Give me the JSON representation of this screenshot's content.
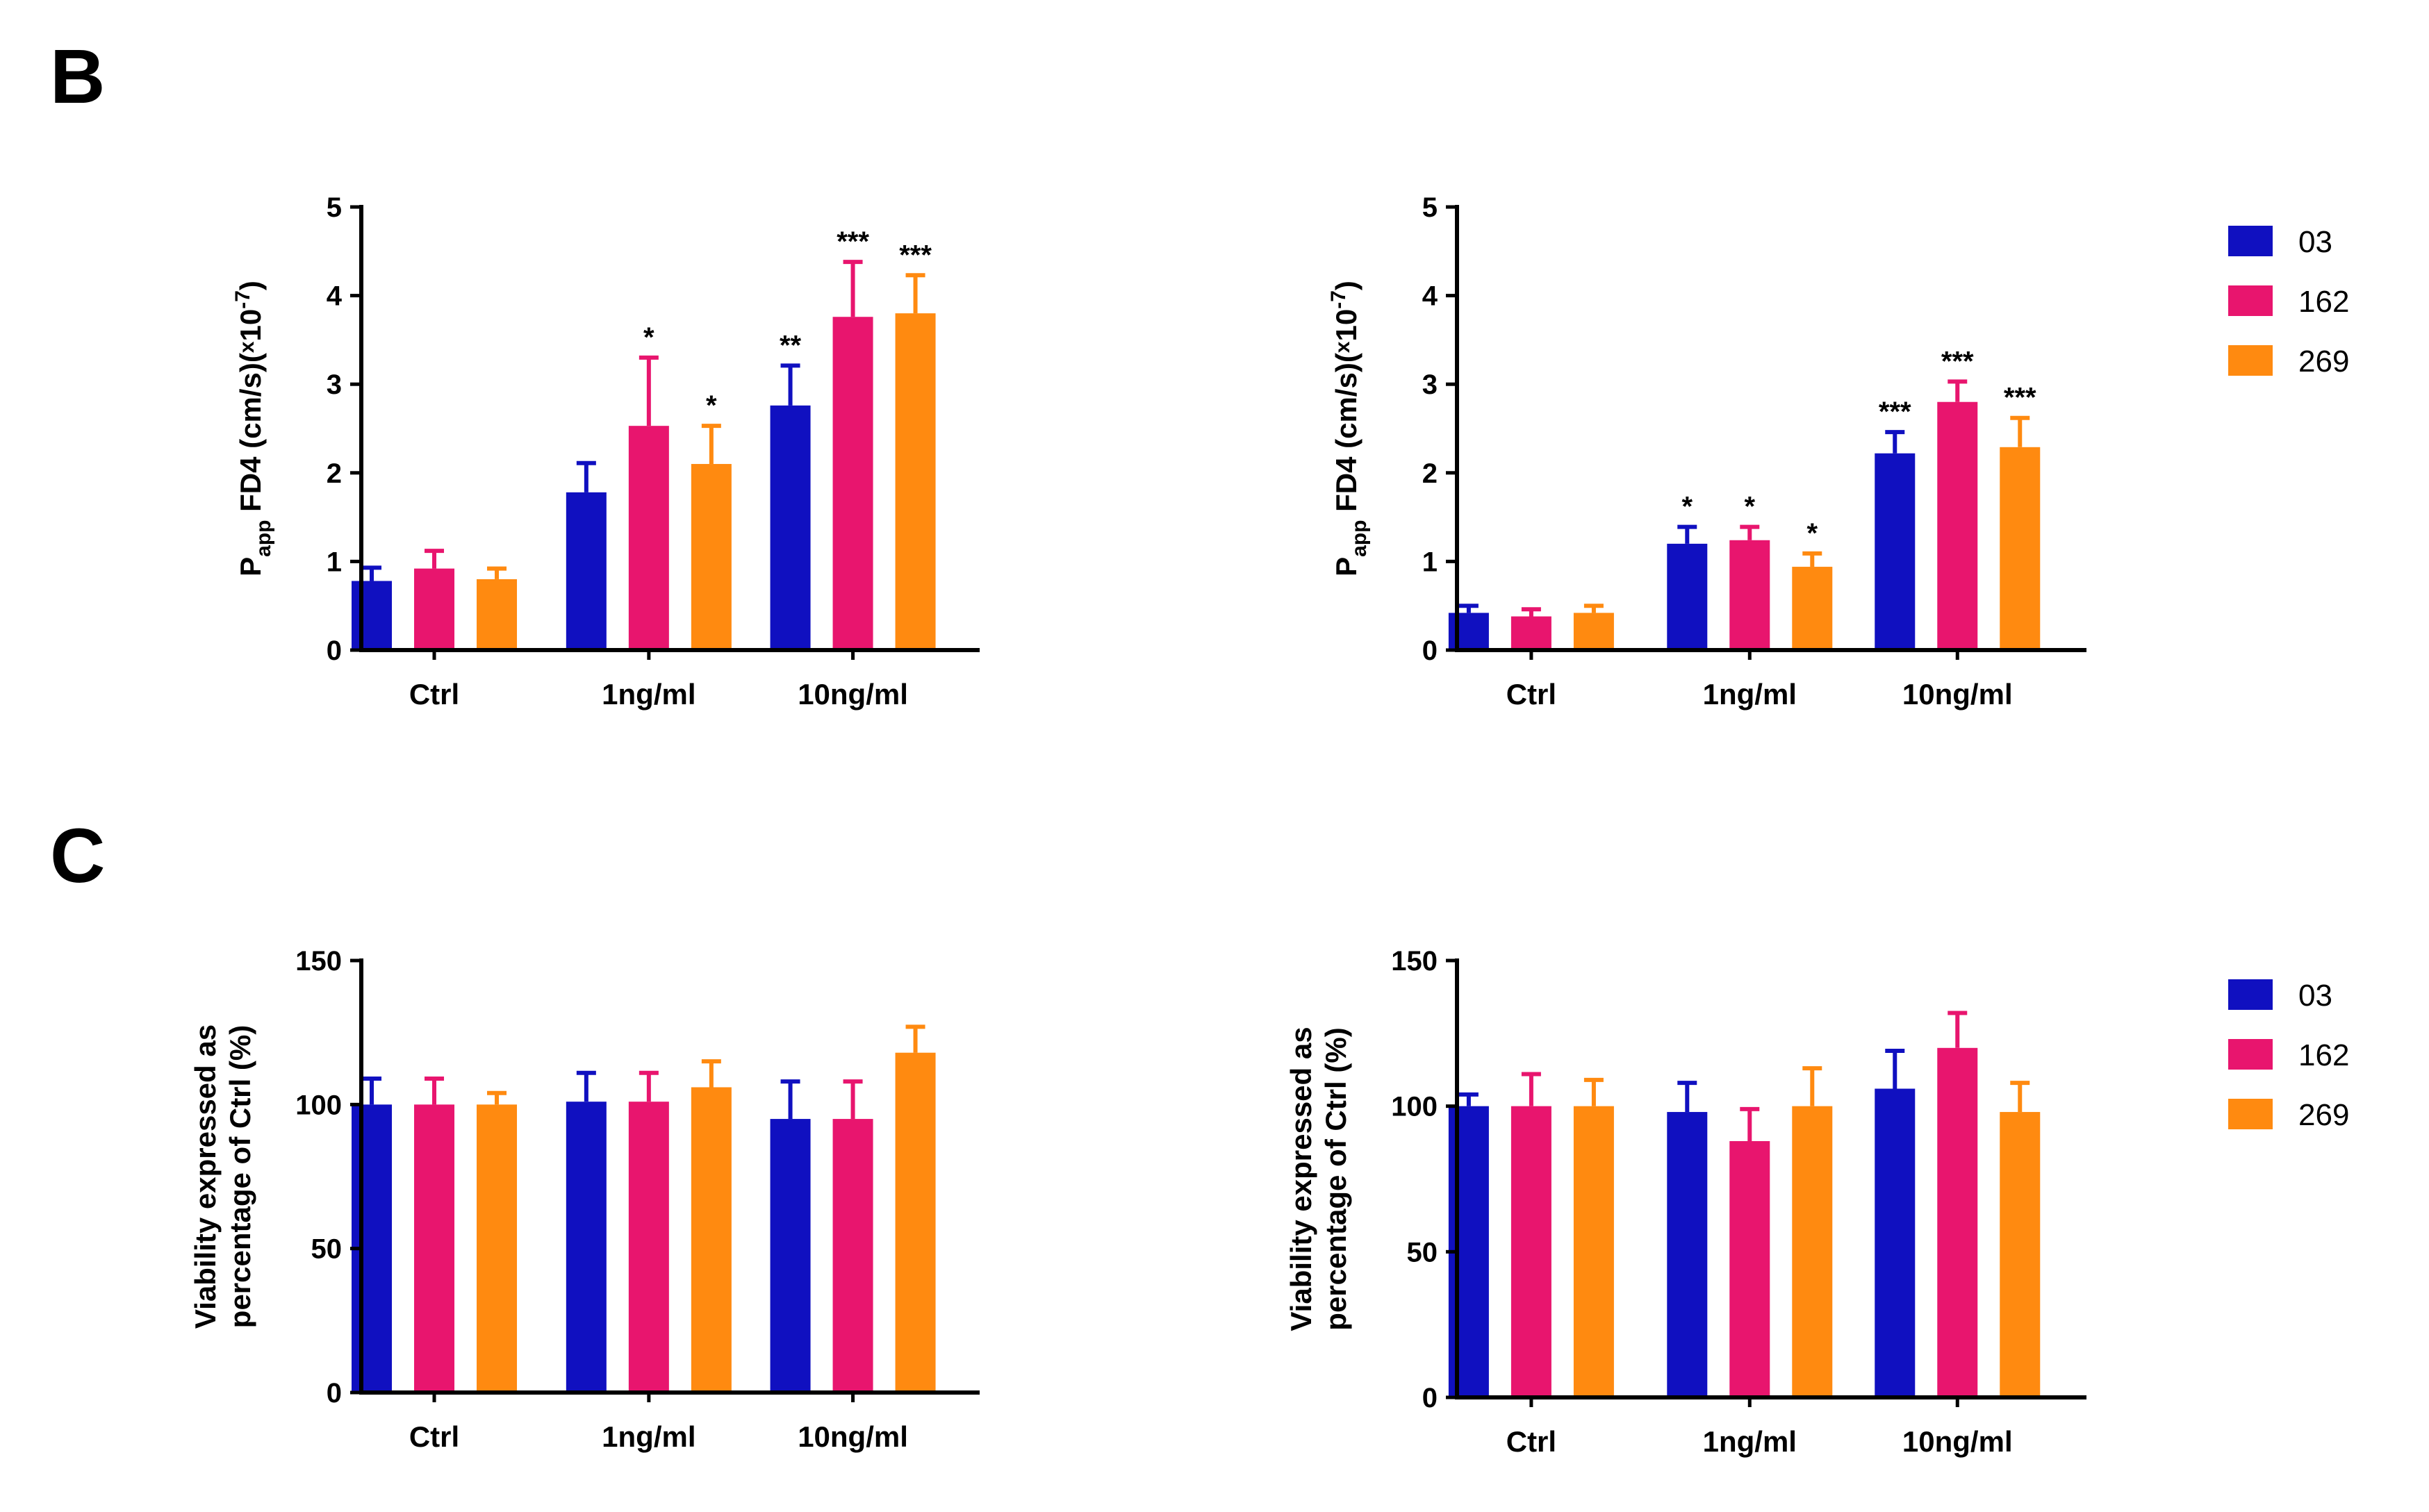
{
  "panels": {
    "B": {
      "label": "B"
    },
    "C": {
      "label": "C"
    }
  },
  "colors": {
    "s03": "#1010c0",
    "s162": "#e8156e",
    "s269": "#ff8a10",
    "axis": "#000000"
  },
  "legend": {
    "entries": [
      "03",
      "162",
      "269"
    ]
  },
  "chart_data": [
    {
      "type": "bar",
      "panel": "B",
      "categories": [
        "Ctrl",
        "1ng/ml",
        "10ng/ml"
      ],
      "ylabel": {
        "main": "P",
        "sub": "app",
        "rest": " FD4 (cm/s)(",
        "x": "x",
        "ten": "10",
        "exp": "-7",
        "close": ")"
      },
      "ylim": [
        0,
        5
      ],
      "yticks": [
        0,
        1,
        2,
        3,
        4,
        5
      ],
      "series": [
        {
          "name": "03",
          "values": [
            0.78,
            1.78,
            2.76
          ],
          "errors": [
            0.15,
            0.33,
            0.45
          ],
          "annotations": [
            "",
            "",
            "**"
          ]
        },
        {
          "name": "162",
          "values": [
            0.92,
            2.53,
            3.76
          ],
          "errors": [
            0.2,
            0.77,
            0.62
          ],
          "annotations": [
            "",
            "*",
            "***"
          ]
        },
        {
          "name": "269",
          "values": [
            0.8,
            2.1,
            3.8
          ],
          "errors": [
            0.12,
            0.43,
            0.43
          ],
          "annotations": [
            "",
            "*",
            "***"
          ]
        }
      ]
    },
    {
      "type": "bar",
      "panel": "B",
      "categories": [
        "Ctrl",
        "1ng/ml",
        "10ng/ml"
      ],
      "ylabel": {
        "main": "P",
        "sub": "app",
        "rest": " FD4 (cm/s)(",
        "x": "x",
        "ten": "10",
        "exp": "-7",
        "close": ")"
      },
      "ylim": [
        0,
        5
      ],
      "yticks": [
        0,
        1,
        2,
        3,
        4,
        5
      ],
      "series": [
        {
          "name": "03",
          "values": [
            0.42,
            1.2,
            2.22
          ],
          "errors": [
            0.08,
            0.19,
            0.24
          ],
          "annotations": [
            "",
            "*",
            "***"
          ]
        },
        {
          "name": "162",
          "values": [
            0.38,
            1.24,
            2.8
          ],
          "errors": [
            0.08,
            0.15,
            0.23
          ],
          "annotations": [
            "",
            "*",
            "***"
          ]
        },
        {
          "name": "269",
          "values": [
            0.42,
            0.94,
            2.29
          ],
          "errors": [
            0.08,
            0.15,
            0.33
          ],
          "annotations": [
            "",
            "*",
            "***"
          ]
        }
      ]
    },
    {
      "type": "bar",
      "panel": "C",
      "categories": [
        "Ctrl",
        "1ng/ml",
        "10ng/ml"
      ],
      "ylabel": {
        "line1": "Viability expressed as",
        "line2": "percentage of Ctrl (%)"
      },
      "ylim": [
        0,
        150
      ],
      "yticks": [
        0,
        50,
        100,
        150
      ],
      "series": [
        {
          "name": "03",
          "values": [
            100,
            101,
            95
          ],
          "errors": [
            9,
            10,
            13
          ],
          "annotations": [
            "",
            "",
            ""
          ]
        },
        {
          "name": "162",
          "values": [
            100,
            101,
            95
          ],
          "errors": [
            9,
            10,
            13
          ],
          "annotations": [
            "",
            "",
            ""
          ]
        },
        {
          "name": "269",
          "values": [
            100,
            106,
            118
          ],
          "errors": [
            4,
            9,
            9
          ],
          "annotations": [
            "",
            "",
            ""
          ]
        }
      ]
    },
    {
      "type": "bar",
      "panel": "C",
      "categories": [
        "Ctrl",
        "1ng/ml",
        "10ng/ml"
      ],
      "ylabel": {
        "line1": "Viability expressed as",
        "line2": "percentage of Ctrl (%)"
      },
      "ylim": [
        0,
        150
      ],
      "yticks": [
        0,
        50,
        100,
        150
      ],
      "series": [
        {
          "name": "03",
          "values": [
            100,
            98,
            106
          ],
          "errors": [
            4,
            10,
            13
          ],
          "annotations": [
            "",
            "",
            ""
          ]
        },
        {
          "name": "162",
          "values": [
            100,
            88,
            120
          ],
          "errors": [
            11,
            11,
            12
          ],
          "annotations": [
            "",
            "",
            ""
          ]
        },
        {
          "name": "269",
          "values": [
            100,
            100,
            98
          ],
          "errors": [
            9,
            13,
            10
          ],
          "annotations": [
            "",
            "",
            ""
          ]
        }
      ]
    }
  ]
}
